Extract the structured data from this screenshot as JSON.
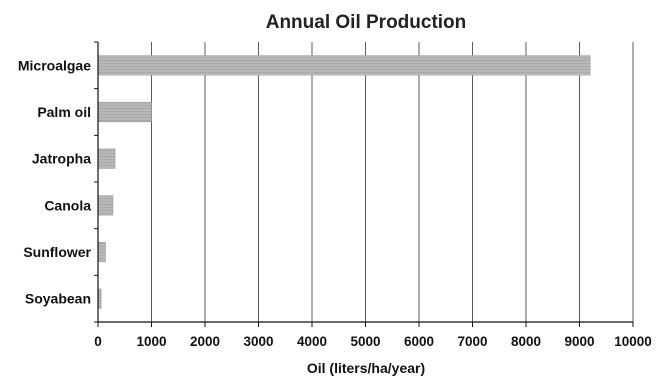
{
  "chart_data": {
    "type": "bar",
    "orientation": "horizontal",
    "title": "Annual Oil Production",
    "xlabel": "Oil (liters/ha/year)",
    "ylabel": "",
    "categories": [
      "Microalgae",
      "Palm oil",
      "Jatropha",
      "Canola",
      "Sunflower",
      "Soyabean"
    ],
    "values": [
      9200,
      1000,
      320,
      280,
      140,
      60
    ],
    "xlim": [
      0,
      10000
    ],
    "xticks": [
      "0",
      "1000",
      "2000",
      "3000",
      "4000",
      "5000",
      "6000",
      "7000",
      "8000",
      "9000",
      "10000"
    ],
    "grid": "vertical",
    "legend": "none",
    "bar_color": "#a9a9a9",
    "bar_stripe_color": "#c8c8c8",
    "axis_color": "#111111",
    "grid_color": "#333333"
  }
}
